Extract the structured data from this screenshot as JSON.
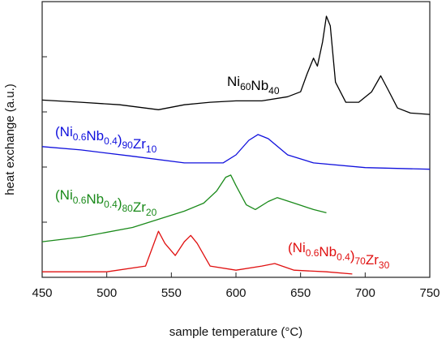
{
  "chart_data": {
    "type": "line",
    "xlabel": "sample temperature (°C)",
    "ylabel": "heat exchange (a.u.)",
    "xlim": [
      450,
      750
    ],
    "xticks": [
      450,
      500,
      550,
      600,
      650,
      700,
      750
    ],
    "ylim": [
      0,
      100
    ],
    "yticks": [
      20,
      40,
      60,
      80
    ],
    "ytick_labels": false,
    "series": [
      {
        "name": "Ni60Nb40",
        "color": "#000000",
        "x": [
          450,
          480,
          510,
          540,
          560,
          580,
          600,
          620,
          640,
          650,
          655,
          660,
          663,
          667,
          670,
          673,
          677,
          685,
          695,
          705,
          712,
          718,
          725,
          735,
          750
        ],
        "values": [
          64.3,
          63.5,
          62.6,
          60.8,
          62.6,
          63.5,
          64.0,
          64.0,
          65.5,
          67.3,
          73.7,
          79.5,
          76.6,
          85.4,
          94.7,
          91.2,
          70.8,
          63.5,
          63.5,
          67.3,
          73.1,
          67.8,
          61.4,
          59.6,
          59.1
        ]
      },
      {
        "name": "(Ni0.6Nb0.4)90Zr10",
        "color": "#1010dd",
        "x": [
          450,
          480,
          520,
          560,
          590,
          600,
          610,
          617,
          625,
          640,
          660,
          700,
          750
        ],
        "values": [
          47.4,
          46.2,
          43.9,
          41.5,
          41.5,
          44.4,
          49.7,
          51.8,
          50.3,
          44.4,
          41.5,
          39.8,
          39.2
        ]
      },
      {
        "name": "(Ni0.6Nb0.4)80Zr20",
        "color": "#1a8a1a",
        "x": [
          450,
          480,
          520,
          560,
          575,
          585,
          592,
          596,
          600,
          608,
          615,
          625,
          632,
          645,
          660,
          670
        ],
        "values": [
          12.9,
          14.6,
          18.1,
          24.0,
          26.9,
          31.3,
          36.3,
          37.1,
          33.3,
          26.3,
          24.6,
          27.5,
          28.9,
          26.9,
          24.6,
          23.4
        ]
      },
      {
        "name": "(Ni0.6Nb0.4)70Zr30",
        "color": "#e01010",
        "x": [
          450,
          500,
          530,
          537,
          540,
          545,
          553,
          560,
          565,
          570,
          580,
          600,
          620,
          630,
          645,
          670,
          690
        ],
        "values": [
          2.0,
          2.0,
          4.1,
          12.9,
          16.7,
          12.3,
          7.9,
          12.9,
          15.2,
          12.3,
          4.1,
          2.6,
          4.1,
          5.0,
          2.6,
          2.0,
          1.2
        ]
      }
    ]
  }
}
